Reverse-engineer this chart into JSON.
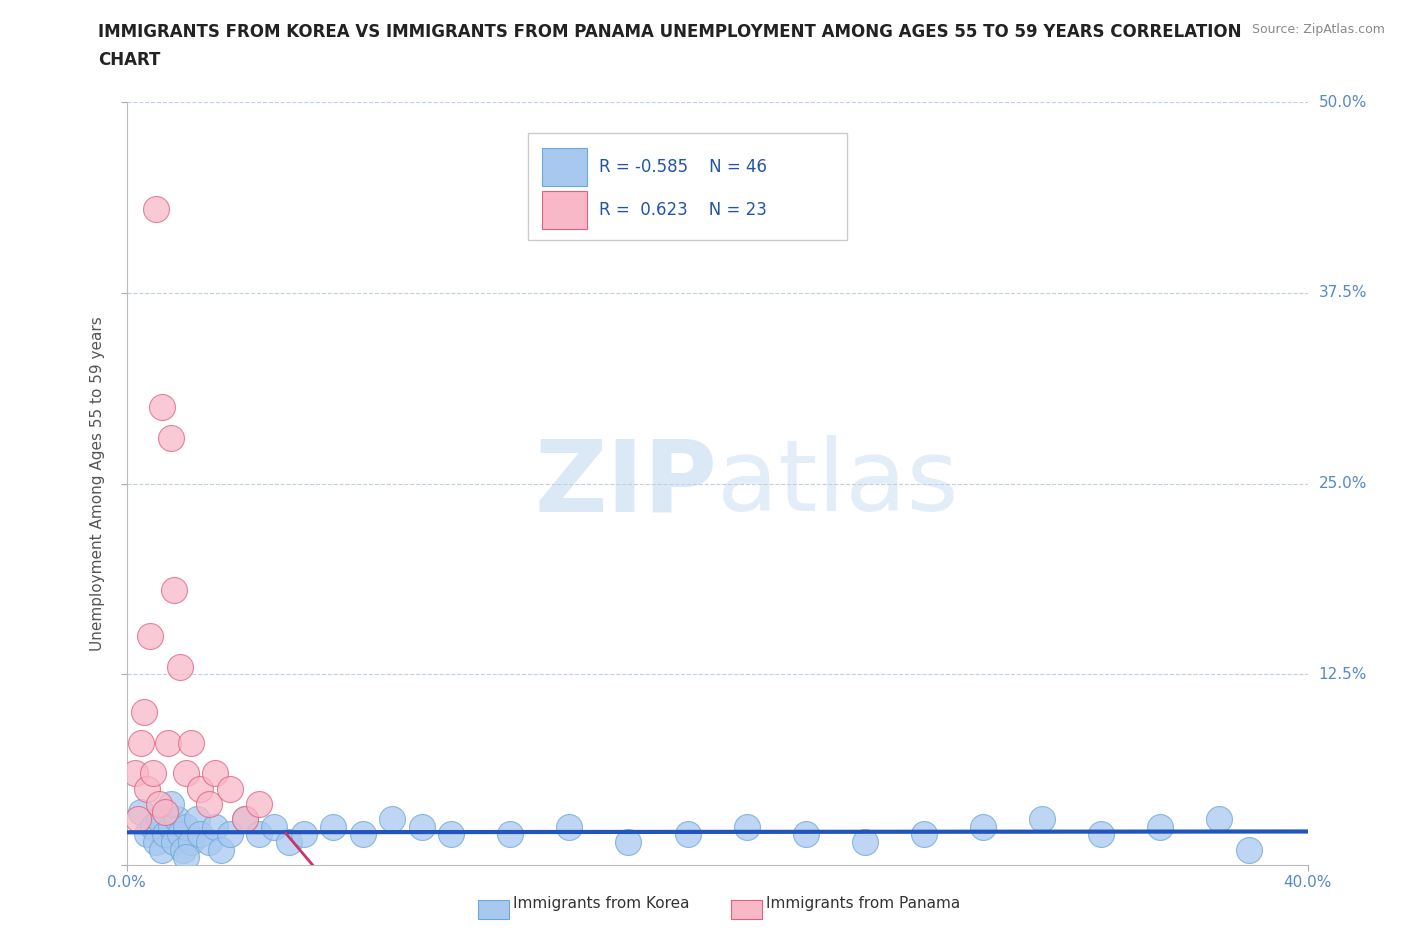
{
  "title_line1": "IMMIGRANTS FROM KOREA VS IMMIGRANTS FROM PANAMA UNEMPLOYMENT AMONG AGES 55 TO 59 YEARS CORRELATION",
  "title_line2": "CHART",
  "source_text": "Source: ZipAtlas.com",
  "ylabel": "Unemployment Among Ages 55 to 59 years",
  "xlim": [
    0.0,
    0.4
  ],
  "ylim": [
    0.0,
    0.5
  ],
  "xtick_left": "0.0%",
  "xtick_right": "40.0%",
  "ytick_labels": [
    "12.5%",
    "25.0%",
    "37.5%",
    "50.0%"
  ],
  "ytick_values": [
    0.125,
    0.25,
    0.375,
    0.5
  ],
  "watermark_zip": "ZIP",
  "watermark_atlas": "atlas",
  "legend_korea_r": "-0.585",
  "legend_korea_n": "46",
  "legend_panama_r": "0.623",
  "legend_panama_n": "23",
  "korea_face_color": "#a8c8f0",
  "korea_edge_color": "#6aa8d8",
  "panama_face_color": "#f8b8c8",
  "panama_edge_color": "#e06080",
  "korea_trend_color": "#2255bb",
  "panama_trend_color": "#cc3366",
  "background_color": "#ffffff",
  "grid_color": "#c0d0e0",
  "korea_scatter_x": [
    0.005,
    0.007,
    0.009,
    0.01,
    0.011,
    0.012,
    0.013,
    0.015,
    0.016,
    0.017,
    0.018,
    0.019,
    0.02,
    0.022,
    0.024,
    0.025,
    0.028,
    0.03,
    0.032,
    0.035,
    0.04,
    0.045,
    0.05,
    0.055,
    0.06,
    0.07,
    0.08,
    0.09,
    0.1,
    0.11,
    0.13,
    0.15,
    0.17,
    0.19,
    0.21,
    0.23,
    0.25,
    0.27,
    0.29,
    0.31,
    0.33,
    0.35,
    0.37,
    0.38,
    0.015,
    0.02
  ],
  "korea_scatter_y": [
    0.035,
    0.02,
    0.025,
    0.015,
    0.03,
    0.01,
    0.02,
    0.025,
    0.015,
    0.03,
    0.02,
    0.01,
    0.025,
    0.015,
    0.03,
    0.02,
    0.015,
    0.025,
    0.01,
    0.02,
    0.03,
    0.02,
    0.025,
    0.015,
    0.02,
    0.025,
    0.02,
    0.03,
    0.025,
    0.02,
    0.02,
    0.025,
    0.015,
    0.02,
    0.025,
    0.02,
    0.015,
    0.02,
    0.025,
    0.03,
    0.02,
    0.025,
    0.03,
    0.01,
    0.04,
    0.005
  ],
  "panama_scatter_x": [
    0.003,
    0.004,
    0.005,
    0.006,
    0.007,
    0.008,
    0.009,
    0.01,
    0.011,
    0.012,
    0.013,
    0.014,
    0.015,
    0.016,
    0.018,
    0.02,
    0.022,
    0.025,
    0.028,
    0.03,
    0.035,
    0.04,
    0.045
  ],
  "panama_scatter_y": [
    0.06,
    0.03,
    0.08,
    0.1,
    0.05,
    0.15,
    0.06,
    0.43,
    0.04,
    0.3,
    0.035,
    0.08,
    0.28,
    0.18,
    0.13,
    0.06,
    0.08,
    0.05,
    0.04,
    0.06,
    0.05,
    0.03,
    0.04
  ]
}
